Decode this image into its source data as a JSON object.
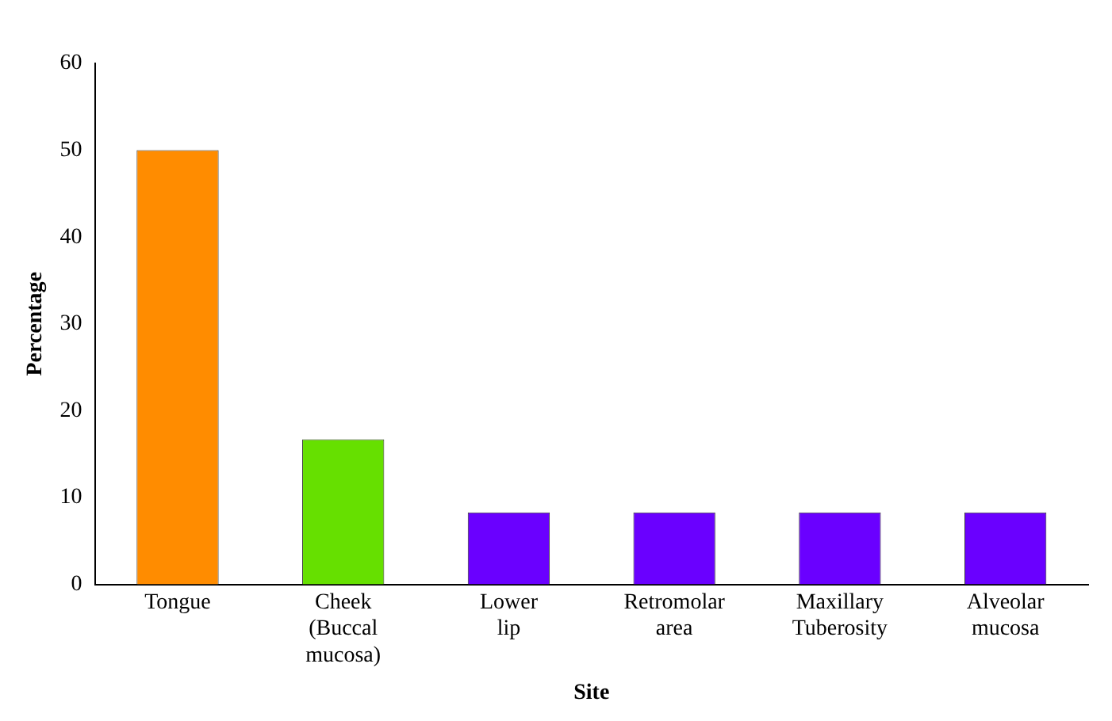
{
  "chart_data": {
    "type": "bar",
    "xlabel": "Site",
    "ylabel": "Percentage",
    "categories": [
      "Tongue",
      "Cheek (Buccal mucosa)",
      "Lower lip",
      "Retromolar area",
      "Maxillary Tuberosity",
      "Alveolar mucosa"
    ],
    "values": [
      50,
      16.7,
      8.3,
      8.3,
      8.3,
      8.3
    ],
    "colors": [
      "#ff8c00",
      "#66e000",
      "#6a00ff",
      "#6a00ff",
      "#6a00ff",
      "#6a00ff"
    ],
    "ylim": [
      0,
      60
    ],
    "yticks": [
      0,
      10,
      20,
      30,
      40,
      50,
      60
    ],
    "grid": false,
    "legend": false
  }
}
